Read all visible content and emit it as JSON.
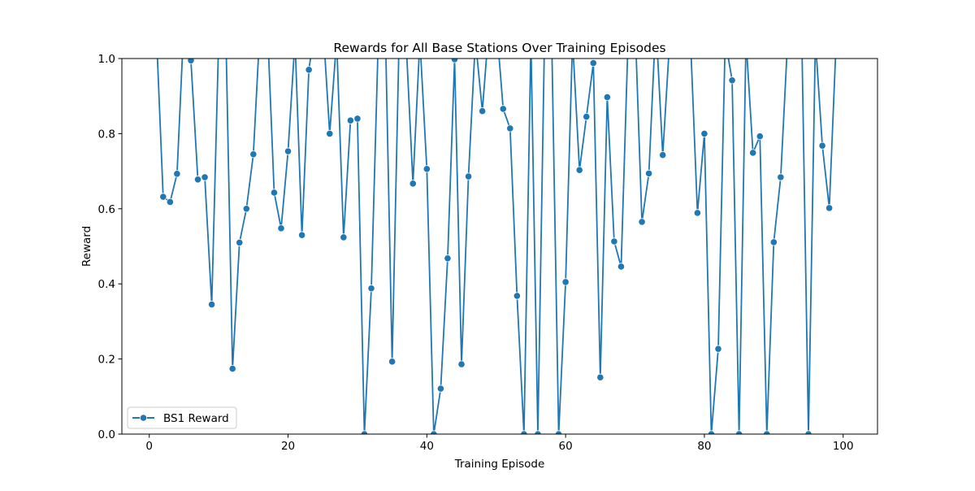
{
  "chart_data": {
    "type": "line",
    "title": "Rewards for All Base Stations Over Training Episodes",
    "xlabel": "Training Episode",
    "ylabel": "Reward",
    "xlim": [
      -3.95,
      104.95
    ],
    "ylim": [
      0.0,
      1.0
    ],
    "xticks": [
      0,
      20,
      40,
      60,
      80,
      100
    ],
    "yticks": [
      0.0,
      0.2,
      0.4,
      0.6,
      0.8,
      1.0
    ],
    "xtick_labels": [
      "0",
      "20",
      "40",
      "60",
      "80",
      "100"
    ],
    "ytick_labels": [
      "0.0",
      "0.2",
      "0.4",
      "0.6",
      "0.8",
      "1.0"
    ],
    "grid": false,
    "legend_position": "lower-left",
    "series": [
      {
        "name": "BS1 Reward",
        "color": "#1f77b4",
        "marker": "circle",
        "x": [
          0,
          1,
          2,
          3,
          4,
          5,
          6,
          7,
          8,
          9,
          10,
          11,
          12,
          13,
          14,
          15,
          16,
          17,
          18,
          19,
          20,
          21,
          22,
          23,
          24,
          25,
          26,
          27,
          28,
          29,
          30,
          31,
          32,
          33,
          34,
          35,
          36,
          37,
          38,
          39,
          40,
          41,
          42,
          43,
          44,
          45,
          46,
          47,
          48,
          49,
          50,
          51,
          52,
          53,
          54,
          55,
          56,
          57,
          58,
          59,
          60,
          61,
          62,
          63,
          64,
          65,
          66,
          67,
          68,
          69,
          70,
          71,
          72,
          73,
          74,
          75,
          76,
          77,
          78,
          79,
          80,
          81,
          82,
          83,
          84,
          85,
          86,
          87,
          88,
          89,
          90,
          91,
          92,
          93,
          94,
          95,
          96,
          97,
          98,
          99
        ],
        "y": [
          1.05,
          1.08,
          0.632,
          0.618,
          0.693,
          1.1,
          0.995,
          0.678,
          0.684,
          0.345,
          1.05,
          1.1,
          0.174,
          0.51,
          0.6,
          0.745,
          1.1,
          1.1,
          0.643,
          0.548,
          0.753,
          1.05,
          0.53,
          0.97,
          1.1,
          1.1,
          0.8,
          1.05,
          0.524,
          0.835,
          0.84,
          0.0,
          0.388,
          1.05,
          1.1,
          0.193,
          1.05,
          1.05,
          0.667,
          1.05,
          0.706,
          0.0,
          0.121,
          0.468,
          0.998,
          0.186,
          0.686,
          1.05,
          0.86,
          1.1,
          1.1,
          0.866,
          0.814,
          0.368,
          0.0,
          1.05,
          0.0,
          1.1,
          1.05,
          0.0,
          0.405,
          1.05,
          0.703,
          0.845,
          0.988,
          0.151,
          0.897,
          0.513,
          0.446,
          1.05,
          1.1,
          0.565,
          0.694,
          1.1,
          0.743,
          1.05,
          1.1,
          1.1,
          1.05,
          0.589,
          0.8,
          0.0,
          0.227,
          1.05,
          0.942,
          0.0,
          1.05,
          0.749,
          0.793,
          0.0,
          0.511,
          0.684,
          1.05,
          1.1,
          1.1,
          0.0,
          1.05,
          0.768,
          0.602,
          1.05
        ]
      }
    ]
  }
}
